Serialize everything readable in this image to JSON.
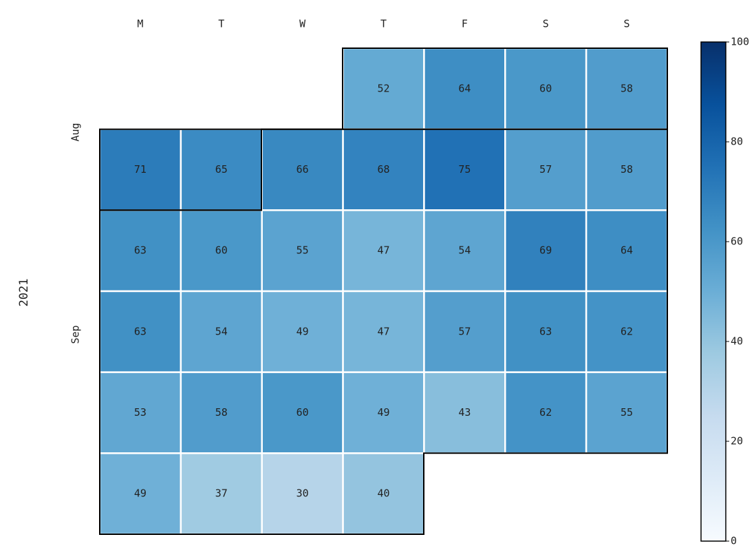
{
  "chart_data": {
    "type": "calendar-heatmap",
    "year_label": "2021",
    "columns": [
      "M",
      "T",
      "W",
      "T",
      "F",
      "S",
      "S"
    ],
    "month_labels": [
      "Aug",
      "Sep"
    ],
    "values": [
      [
        null,
        null,
        null,
        52,
        64,
        60,
        58
      ],
      [
        71,
        65,
        66,
        68,
        75,
        57,
        58
      ],
      [
        63,
        60,
        55,
        47,
        54,
        69,
        64
      ],
      [
        63,
        54,
        49,
        47,
        57,
        63,
        62
      ],
      [
        53,
        58,
        60,
        49,
        43,
        62,
        55
      ],
      [
        49,
        37,
        30,
        40,
        null,
        null,
        null
      ]
    ],
    "cmap": "Blues",
    "clim": [
      0,
      100
    ],
    "cticks": [
      0,
      20,
      40,
      60,
      80,
      100
    ]
  }
}
